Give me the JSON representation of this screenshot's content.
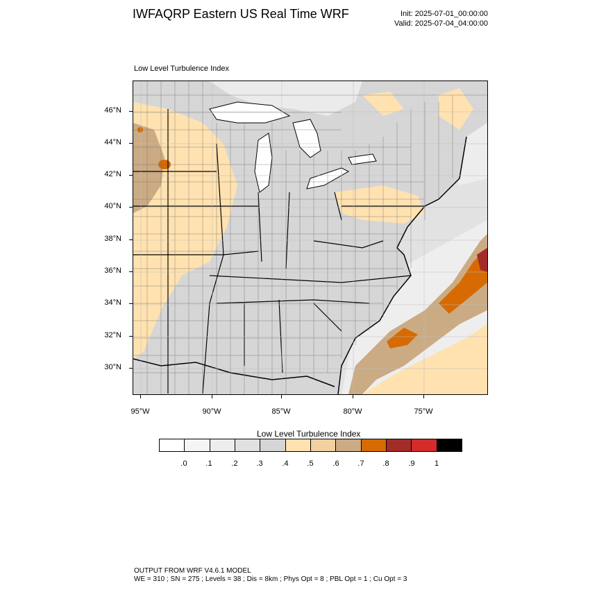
{
  "header": {
    "title": "IWFAQRP Eastern US Real Time WRF",
    "init": "Init: 2025-07-01_00:00:00",
    "valid": "Valid: 2025-07-04_04:00:00"
  },
  "panel_title": "Low Level Turbulence Index",
  "map": {
    "lat_labels": [
      "46°N",
      "44°N",
      "42°N",
      "40°N",
      "38°N",
      "36°N",
      "34°N",
      "32°N",
      "30°N"
    ],
    "lon_labels": [
      "95°W",
      "90°W",
      "85°W",
      "80°W",
      "75°W"
    ],
    "field_max": 0.9,
    "features": [
      "state boundaries",
      "county boundaries",
      "Great Lakes",
      "Atlantic coastline"
    ]
  },
  "colorbar": {
    "title": "Low Level Turbulence Index",
    "labels": [
      ".0",
      ".1",
      ".2",
      ".3",
      ".4",
      ".5",
      ".6",
      ".7",
      ".8",
      ".9",
      "1"
    ],
    "colors": [
      "#ffffff",
      "#f5f5f5",
      "#ededed",
      "#e1e1e1",
      "#d5d5d5",
      "#ffe2b0",
      "#f2d0a0",
      "#cbab84",
      "#d76a02",
      "#a42c28",
      "#d52b2b",
      "#000000"
    ]
  },
  "footer": {
    "line1": "OUTPUT FROM WRF V4.6.1 MODEL",
    "line2": "WE = 310 ; SN = 275 ; Levels = 38 ; Dis = 8km ; Phys Opt = 8 ; PBL Opt = 1 ; Cu Opt = 3"
  }
}
